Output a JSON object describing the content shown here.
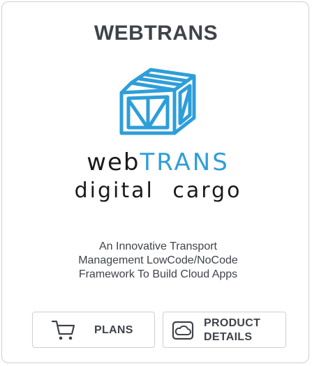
{
  "card": {
    "title": "WEBTRANS",
    "logo": {
      "icon": "crate-icon",
      "wordmark_line1_a": "web",
      "wordmark_line1_b": "TRANS",
      "wordmark_line2": "digital cargo",
      "accent_color": "#2e9ed9"
    },
    "description": {
      "line1": "An Innovative Transport",
      "line2": "Management LowCode/NoCode",
      "line3": "Framework To Build Cloud Apps"
    },
    "buttons": {
      "plans": {
        "label": "PLANS",
        "icon": "cart-icon"
      },
      "product_details": {
        "label_line1": "PRODUCT",
        "label_line2": "DETAILS",
        "icon": "cloud-icon"
      }
    }
  }
}
